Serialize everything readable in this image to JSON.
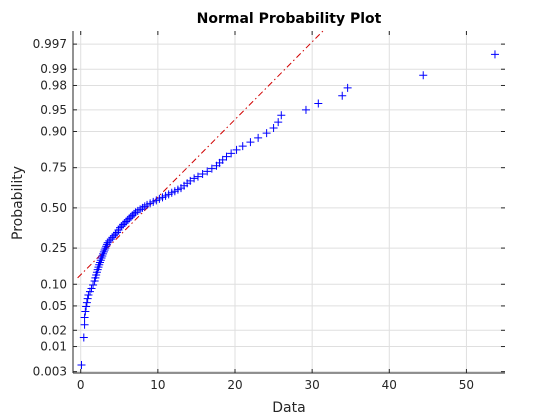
{
  "chart_data": {
    "type": "scatter",
    "title": "Normal Probability Plot",
    "xlabel": "Data",
    "ylabel": "Probability",
    "xlim": [
      -1,
      55
    ],
    "x_ticks": [
      0,
      10,
      20,
      30,
      40,
      50
    ],
    "y_scale": "normal-probability",
    "ylim": [
      0.0028,
      0.9985
    ],
    "y_ticks": [
      {
        "p": 0.003,
        "label": "0.003"
      },
      {
        "p": 0.01,
        "label": "0.01"
      },
      {
        "p": 0.02,
        "label": "0.02"
      },
      {
        "p": 0.05,
        "label": "0.05"
      },
      {
        "p": 0.1,
        "label": "0.10"
      },
      {
        "p": 0.25,
        "label": "0.25"
      },
      {
        "p": 0.5,
        "label": "0.50"
      },
      {
        "p": 0.75,
        "label": "0.75"
      },
      {
        "p": 0.9,
        "label": "0.90"
      },
      {
        "p": 0.95,
        "label": "0.95"
      },
      {
        "p": 0.98,
        "label": "0.98"
      },
      {
        "p": 0.99,
        "label": "0.99"
      },
      {
        "p": 0.997,
        "label": "0.997"
      }
    ],
    "grid": true,
    "marker": "+",
    "marker_color": "#0000ff",
    "reference_line": {
      "style": "dash-dot",
      "color": "#d00000",
      "x": [
        -0.4,
        31.4
      ],
      "p": [
        0.12,
        0.9985
      ]
    },
    "series": [
      {
        "data": [
          [
            0.1,
            0.0042
          ],
          [
            0.4,
            0.0148
          ],
          [
            0.5,
            0.025
          ],
          [
            0.5,
            0.033
          ],
          [
            0.6,
            0.041
          ],
          [
            0.7,
            0.049
          ],
          [
            0.8,
            0.056
          ],
          [
            0.9,
            0.064
          ],
          [
            1.0,
            0.072
          ],
          [
            1.2,
            0.08
          ],
          [
            1.4,
            0.088
          ],
          [
            1.6,
            0.098
          ],
          [
            1.8,
            0.11
          ],
          [
            1.9,
            0.12
          ],
          [
            2.0,
            0.13
          ],
          [
            2.1,
            0.14
          ],
          [
            2.2,
            0.15
          ],
          [
            2.3,
            0.16
          ],
          [
            2.4,
            0.17
          ],
          [
            2.5,
            0.18
          ],
          [
            2.6,
            0.19
          ],
          [
            2.7,
            0.2
          ],
          [
            2.8,
            0.21
          ],
          [
            2.9,
            0.22
          ],
          [
            3.0,
            0.23
          ],
          [
            3.1,
            0.24
          ],
          [
            3.2,
            0.25
          ],
          [
            3.3,
            0.26
          ],
          [
            3.4,
            0.27
          ],
          [
            3.5,
            0.28
          ],
          [
            3.7,
            0.29
          ],
          [
            3.9,
            0.3
          ],
          [
            4.1,
            0.31
          ],
          [
            4.3,
            0.32
          ],
          [
            4.5,
            0.33
          ],
          [
            4.7,
            0.34
          ],
          [
            4.9,
            0.355
          ],
          [
            5.1,
            0.37
          ],
          [
            5.3,
            0.38
          ],
          [
            5.5,
            0.39
          ],
          [
            5.7,
            0.4
          ],
          [
            5.9,
            0.41
          ],
          [
            6.1,
            0.42
          ],
          [
            6.3,
            0.43
          ],
          [
            6.5,
            0.44
          ],
          [
            6.7,
            0.45
          ],
          [
            6.9,
            0.46
          ],
          [
            7.1,
            0.47
          ],
          [
            7.4,
            0.48
          ],
          [
            7.7,
            0.49
          ],
          [
            8.0,
            0.5
          ],
          [
            8.3,
            0.51
          ],
          [
            8.6,
            0.52
          ],
          [
            9.0,
            0.53
          ],
          [
            9.4,
            0.54
          ],
          [
            9.8,
            0.55
          ],
          [
            10.2,
            0.56
          ],
          [
            10.6,
            0.57
          ],
          [
            11.0,
            0.58
          ],
          [
            11.4,
            0.59
          ],
          [
            11.8,
            0.6
          ],
          [
            12.2,
            0.61
          ],
          [
            12.6,
            0.62
          ],
          [
            13.0,
            0.63
          ],
          [
            13.4,
            0.645
          ],
          [
            13.8,
            0.66
          ],
          [
            14.2,
            0.675
          ],
          [
            14.7,
            0.69
          ],
          [
            15.2,
            0.7
          ],
          [
            15.8,
            0.715
          ],
          [
            16.4,
            0.73
          ],
          [
            17.0,
            0.745
          ],
          [
            17.6,
            0.76
          ],
          [
            18.0,
            0.775
          ],
          [
            18.4,
            0.79
          ],
          [
            18.9,
            0.805
          ],
          [
            19.5,
            0.82
          ],
          [
            20.2,
            0.835
          ],
          [
            21.0,
            0.85
          ],
          [
            22.0,
            0.865
          ],
          [
            23.0,
            0.88
          ],
          [
            24.1,
            0.895
          ],
          [
            25.0,
            0.91
          ],
          [
            25.6,
            0.925
          ],
          [
            26.0,
            0.94
          ],
          [
            29.2,
            0.95
          ],
          [
            30.8,
            0.96
          ],
          [
            33.9,
            0.97
          ],
          [
            34.6,
            0.978
          ],
          [
            44.4,
            0.987
          ],
          [
            53.7,
            0.995
          ]
        ]
      }
    ]
  }
}
